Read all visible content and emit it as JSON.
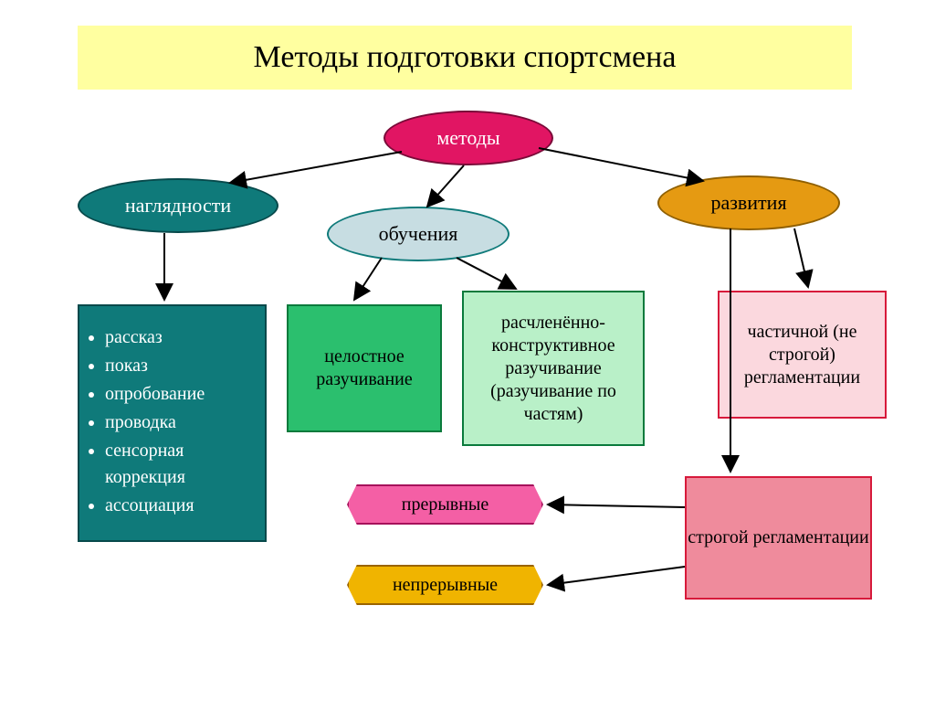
{
  "title": "Методы подготовки спортсмена",
  "nodes": {
    "methods": {
      "label": "методы",
      "fill": "#e11563",
      "stroke": "#7a0a38",
      "text": "#ffffff"
    },
    "visual": {
      "label": "наглядности",
      "fill": "#0f7a7a",
      "stroke": "#07494b",
      "text": "#ffffff"
    },
    "learning": {
      "label": "обучения",
      "fill": "#c7dde2",
      "stroke": "#0f7a7a",
      "text": "#000000"
    },
    "develop": {
      "label": "развития",
      "fill": "#e59a12",
      "stroke": "#8f5f00",
      "text": "#000000"
    },
    "whole": {
      "label": "целостное разучивание",
      "fill": "#2bbf6e",
      "stroke": "#0a7a3c",
      "text": "#000000"
    },
    "parts": {
      "label": "расчленённо-конструктивное разучивание (разучивание по частям)",
      "fill": "#b9f0c8",
      "stroke": "#0a7a3c",
      "text": "#000000"
    },
    "partial": {
      "label": "частичной (не строгой) регламентации",
      "fill": "#fbd8de",
      "stroke": "#d71a3b",
      "text": "#000000"
    },
    "strict": {
      "label": "строгой регламентации",
      "fill": "#ef8b9c",
      "stroke": "#d71a3b",
      "text": "#000000"
    },
    "interrupt": {
      "label": "прерывные",
      "fill": "#f45fa5",
      "stroke": "#a6125b",
      "text": "#000000"
    },
    "continuous": {
      "label": "непрерывные",
      "fill": "#f0b400",
      "stroke": "#9a6400",
      "text": "#000000"
    },
    "list": {
      "fill": "#0f7a7a",
      "stroke": "#07494b",
      "text": "#ffffff",
      "items": [
        "рассказ",
        "показ",
        "опробование",
        "проводка",
        "сенсорная коррекция",
        "ассоциация"
      ]
    }
  },
  "arrow_color": "#000000"
}
